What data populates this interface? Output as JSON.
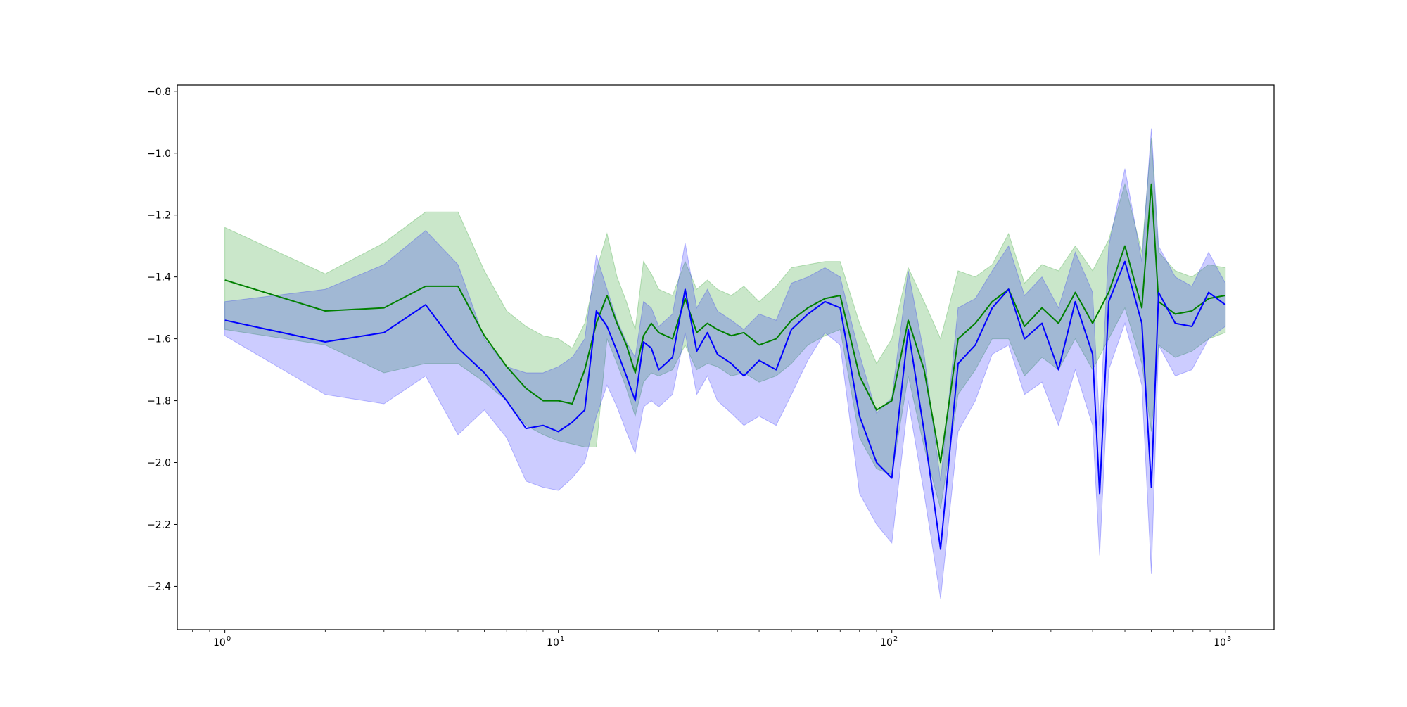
{
  "chart_data": {
    "type": "line",
    "title": "",
    "xlabel": "",
    "ylabel": "",
    "x_scale": "log",
    "xlim": [
      0.72,
      1400
    ],
    "ylim": [
      -2.54,
      -0.78
    ],
    "grid": false,
    "legend": "none",
    "x_ticks": [
      {
        "value": 1,
        "base": "10",
        "exp": "0"
      },
      {
        "value": 10,
        "base": "10",
        "exp": "1"
      },
      {
        "value": 100,
        "base": "10",
        "exp": "2"
      },
      {
        "value": 1000,
        "base": "10",
        "exp": "3"
      }
    ],
    "y_ticks": [
      {
        "value": -0.8,
        "label": "−0.8"
      },
      {
        "value": -1.0,
        "label": "−1.0"
      },
      {
        "value": -1.2,
        "label": "−1.2"
      },
      {
        "value": -1.4,
        "label": "−1.4"
      },
      {
        "value": -1.6,
        "label": "−1.6"
      },
      {
        "value": -1.8,
        "label": "−1.8"
      },
      {
        "value": -2.0,
        "label": "−2.0"
      },
      {
        "value": -2.2,
        "label": "−2.2"
      },
      {
        "value": -2.4,
        "label": "−2.4"
      }
    ],
    "series": [
      {
        "color": "#008000",
        "band_color": "#2ca02c",
        "band_opacity": 0.25,
        "x": [
          1,
          2,
          3,
          4,
          5,
          6,
          7,
          8,
          9,
          10,
          11,
          12,
          13,
          14,
          15,
          16,
          17,
          18,
          19,
          20,
          22,
          24,
          26,
          28,
          30,
          33,
          36,
          40,
          45,
          50,
          56,
          63,
          70,
          80,
          90,
          100,
          112,
          125,
          140,
          158,
          178,
          200,
          224,
          250,
          282,
          316,
          355,
          400,
          447,
          500,
          562,
          600,
          631,
          708,
          794,
          891,
          1000
        ],
        "y": [
          -1.41,
          -1.51,
          -1.5,
          -1.43,
          -1.43,
          -1.59,
          -1.69,
          -1.76,
          -1.8,
          -1.8,
          -1.81,
          -1.7,
          -1.55,
          -1.46,
          -1.55,
          -1.62,
          -1.71,
          -1.59,
          -1.55,
          -1.58,
          -1.6,
          -1.47,
          -1.58,
          -1.55,
          -1.57,
          -1.59,
          -1.58,
          -1.62,
          -1.6,
          -1.54,
          -1.5,
          -1.47,
          -1.46,
          -1.72,
          -1.83,
          -1.8,
          -1.54,
          -1.7,
          -2.0,
          -1.6,
          -1.55,
          -1.48,
          -1.44,
          -1.56,
          -1.5,
          -1.55,
          -1.45,
          -1.55,
          -1.45,
          -1.3,
          -1.5,
          -1.1,
          -1.48,
          -1.52,
          -1.51,
          -1.47,
          -1.46
        ],
        "lower": [
          -1.57,
          -1.62,
          -1.71,
          -1.68,
          -1.68,
          -1.74,
          -1.8,
          -1.88,
          -1.91,
          -1.93,
          -1.94,
          -1.95,
          -1.95,
          -1.6,
          -1.68,
          -1.76,
          -1.85,
          -1.74,
          -1.71,
          -1.72,
          -1.7,
          -1.62,
          -1.7,
          -1.68,
          -1.69,
          -1.72,
          -1.71,
          -1.74,
          -1.72,
          -1.68,
          -1.62,
          -1.59,
          -1.57,
          -1.92,
          -2.02,
          -2.04,
          -1.72,
          -1.95,
          -2.15,
          -1.78,
          -1.7,
          -1.6,
          -1.6,
          -1.72,
          -1.66,
          -1.7,
          -1.6,
          -1.7,
          -1.6,
          -1.5,
          -1.68,
          -1.9,
          -1.62,
          -1.66,
          -1.64,
          -1.6,
          -1.58
        ],
        "upper": [
          -1.24,
          -1.39,
          -1.29,
          -1.19,
          -1.19,
          -1.38,
          -1.51,
          -1.56,
          -1.59,
          -1.6,
          -1.63,
          -1.55,
          -1.38,
          -1.26,
          -1.4,
          -1.48,
          -1.57,
          -1.35,
          -1.39,
          -1.44,
          -1.46,
          -1.35,
          -1.44,
          -1.41,
          -1.44,
          -1.46,
          -1.43,
          -1.48,
          -1.43,
          -1.37,
          -1.36,
          -1.35,
          -1.35,
          -1.55,
          -1.68,
          -1.6,
          -1.37,
          -1.48,
          -1.6,
          -1.38,
          -1.4,
          -1.36,
          -1.26,
          -1.42,
          -1.36,
          -1.38,
          -1.3,
          -1.38,
          -1.28,
          -1.1,
          -1.32,
          -0.95,
          -1.32,
          -1.38,
          -1.4,
          -1.36,
          -1.37
        ]
      },
      {
        "color": "#0000ff",
        "band_color": "#0000ff",
        "band_opacity": 0.2,
        "x": [
          1,
          2,
          3,
          4,
          5,
          6,
          7,
          8,
          9,
          10,
          11,
          12,
          13,
          14,
          15,
          16,
          17,
          18,
          19,
          20,
          22,
          24,
          26,
          28,
          30,
          33,
          36,
          40,
          45,
          50,
          56,
          63,
          70,
          80,
          90,
          100,
          112,
          125,
          140,
          158,
          178,
          200,
          224,
          250,
          282,
          316,
          355,
          400,
          420,
          447,
          500,
          562,
          600,
          631,
          708,
          794,
          891,
          1000
        ],
        "y": [
          -1.54,
          -1.61,
          -1.58,
          -1.49,
          -1.63,
          -1.71,
          -1.8,
          -1.89,
          -1.88,
          -1.9,
          -1.87,
          -1.83,
          -1.51,
          -1.56,
          -1.64,
          -1.72,
          -1.8,
          -1.61,
          -1.63,
          -1.7,
          -1.66,
          -1.44,
          -1.64,
          -1.58,
          -1.65,
          -1.68,
          -1.72,
          -1.67,
          -1.7,
          -1.57,
          -1.52,
          -1.48,
          -1.5,
          -1.85,
          -2.0,
          -2.05,
          -1.57,
          -1.9,
          -2.28,
          -1.68,
          -1.62,
          -1.5,
          -1.44,
          -1.6,
          -1.55,
          -1.7,
          -1.48,
          -1.65,
          -2.1,
          -1.48,
          -1.35,
          -1.55,
          -2.08,
          -1.45,
          -1.55,
          -1.56,
          -1.45,
          -1.49
        ],
        "lower": [
          -1.59,
          -1.78,
          -1.81,
          -1.72,
          -1.91,
          -1.83,
          -1.92,
          -2.06,
          -2.08,
          -2.09,
          -2.05,
          -2.0,
          -1.85,
          -1.75,
          -1.82,
          -1.9,
          -1.97,
          -1.82,
          -1.8,
          -1.82,
          -1.78,
          -1.58,
          -1.78,
          -1.72,
          -1.8,
          -1.84,
          -1.88,
          -1.85,
          -1.88,
          -1.78,
          -1.67,
          -1.58,
          -1.62,
          -2.1,
          -2.2,
          -2.26,
          -1.8,
          -2.1,
          -2.44,
          -1.9,
          -1.8,
          -1.65,
          -1.62,
          -1.78,
          -1.74,
          -1.88,
          -1.7,
          -1.88,
          -2.3,
          -1.7,
          -1.55,
          -1.75,
          -2.36,
          -1.62,
          -1.72,
          -1.7,
          -1.6,
          -1.56
        ],
        "upper": [
          -1.48,
          -1.44,
          -1.36,
          -1.25,
          -1.36,
          -1.6,
          -1.69,
          -1.71,
          -1.71,
          -1.69,
          -1.66,
          -1.6,
          -1.33,
          -1.44,
          -1.54,
          -1.61,
          -1.66,
          -1.48,
          -1.5,
          -1.56,
          -1.52,
          -1.29,
          -1.5,
          -1.44,
          -1.51,
          -1.54,
          -1.57,
          -1.52,
          -1.54,
          -1.42,
          -1.4,
          -1.37,
          -1.4,
          -1.65,
          -1.84,
          -1.79,
          -1.38,
          -1.65,
          -2.06,
          -1.5,
          -1.47,
          -1.38,
          -1.3,
          -1.46,
          -1.4,
          -1.5,
          -1.32,
          -1.45,
          -1.88,
          -1.3,
          -1.05,
          -1.35,
          -0.92,
          -1.3,
          -1.4,
          -1.43,
          -1.32,
          -1.42
        ]
      }
    ]
  }
}
